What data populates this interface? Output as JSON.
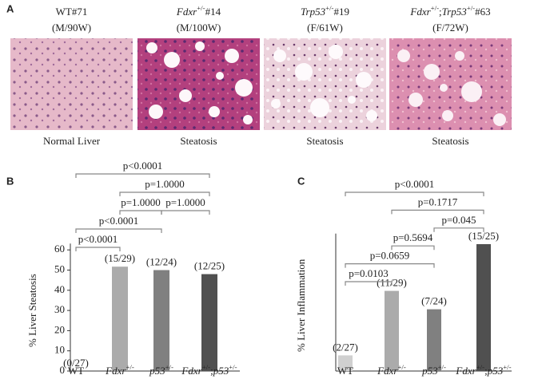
{
  "panel_a": {
    "label": "A",
    "images": [
      {
        "title": [
          {
            "text": "WT#71"
          }
        ],
        "subtitle": "(M/90W)",
        "caption": "Normal Liver"
      },
      {
        "title": [
          {
            "text": "Fdxr",
            "italic": true
          },
          {
            "text": "+/-",
            "sup": true
          },
          {
            "text": "#14"
          }
        ],
        "subtitle": "(M/100W)",
        "caption": "Steatosis"
      },
      {
        "title": [
          {
            "text": "Trp53",
            "italic": true
          },
          {
            "text": "+/-",
            "sup": true
          },
          {
            "text": "#19"
          }
        ],
        "subtitle": "(F/61W)",
        "caption": "Steatosis"
      },
      {
        "title": [
          {
            "text": "Fdxr",
            "italic": true
          },
          {
            "text": "+/-",
            "sup": true
          },
          {
            "text": ";"
          },
          {
            "text": "Trp53",
            "italic": true
          },
          {
            "text": "+/-",
            "sup": true
          },
          {
            "text": "#63"
          }
        ],
        "subtitle": "(F/72W)",
        "caption": "Steatosis"
      }
    ]
  },
  "chart_data": [
    {
      "type": "bar",
      "panel": "B",
      "ylabel": "% Liver Steatosis",
      "categories": [
        [
          {
            "text": "WT"
          }
        ],
        [
          {
            "text": "Fdxr",
            "italic": true
          },
          {
            "text": "+/-",
            "sup": true
          }
        ],
        [
          {
            "text": "p53",
            "italic": true
          },
          {
            "text": "+/-",
            "sup": true
          }
        ],
        [
          {
            "text": "Fdxr",
            "italic": true
          },
          {
            "text": "+/-",
            "sup": true
          },
          {
            "text": ";"
          },
          {
            "text": "p53",
            "italic": true
          },
          {
            "text": "+/-",
            "sup": true
          }
        ]
      ],
      "values": [
        0,
        51.7,
        50,
        48
      ],
      "value_labels": [
        "(0/27)",
        "(15/29)",
        "(12/24)",
        "(12/25)"
      ],
      "colors": [
        "#d0d0d0",
        "#ababab",
        "#808080",
        "#505050"
      ],
      "ylim": [
        0,
        60
      ],
      "yticks": [
        0,
        10,
        20,
        30,
        40,
        50,
        60
      ],
      "comparisons": [
        {
          "pair": [
            0,
            1
          ],
          "label": "p<0.0001"
        },
        {
          "pair": [
            0,
            2
          ],
          "label": "p<0.0001"
        },
        {
          "pair": [
            1,
            2
          ],
          "label": "p=1.0000"
        },
        {
          "pair": [
            2,
            3
          ],
          "label": "p=1.0000"
        },
        {
          "pair": [
            1,
            3
          ],
          "label": "p=1.0000"
        },
        {
          "pair": [
            0,
            3
          ],
          "label": "p<0.0001"
        }
      ]
    },
    {
      "type": "bar",
      "panel": "C",
      "ylabel": "% Liver Inflammation",
      "categories": [
        [
          {
            "text": "WT"
          }
        ],
        [
          {
            "text": "Fdxr",
            "italic": true
          },
          {
            "text": "+/-",
            "sup": true
          }
        ],
        [
          {
            "text": "p53",
            "italic": true
          },
          {
            "text": "+/-",
            "sup": true
          }
        ],
        [
          {
            "text": "Fdxr",
            "italic": true
          },
          {
            "text": "+/-",
            "sup": true
          },
          {
            "text": ";"
          },
          {
            "text": "p53",
            "italic": true
          },
          {
            "text": "+/-",
            "sup": true
          }
        ]
      ],
      "values": [
        7.4,
        37.9,
        29.2,
        60
      ],
      "value_labels": [
        "(2/27)",
        "(11/29)",
        "(7/24)",
        "(15/25)"
      ],
      "colors": [
        "#d0d0d0",
        "#ababab",
        "#808080",
        "#505050"
      ],
      "ylim": [
        0,
        62
      ],
      "comparisons": [
        {
          "pair": [
            0,
            1
          ],
          "label": "p=0.0103"
        },
        {
          "pair": [
            0,
            2
          ],
          "label": "p=0.0659"
        },
        {
          "pair": [
            1,
            2
          ],
          "label": "p=0.5694"
        },
        {
          "pair": [
            2,
            3
          ],
          "label": "p=0.045"
        },
        {
          "pair": [
            1,
            3
          ],
          "label": "p=0.1717"
        },
        {
          "pair": [
            0,
            3
          ],
          "label": "p<0.0001"
        }
      ]
    }
  ]
}
